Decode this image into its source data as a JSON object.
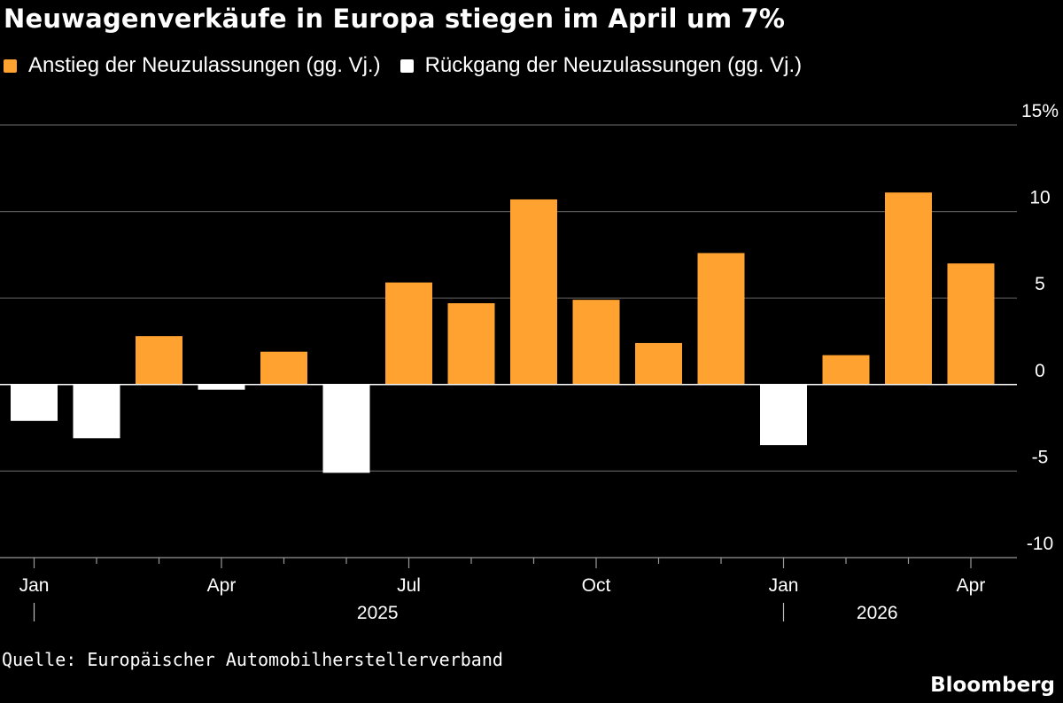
{
  "title": "Neuwagenverkäufe in Europa stiegen im April um 7%",
  "legend": {
    "positive": {
      "label": "Anstieg der Neuzulassungen (gg. Vj.)",
      "color": "#FFA22F"
    },
    "negative": {
      "label": "Rückgang der Neuzulassungen (gg. Vj.)",
      "color": "#FFFFFF"
    }
  },
  "chart_data": {
    "type": "bar",
    "categories": [
      "Jan 2025",
      "Feb 2025",
      "Mar 2025",
      "Apr 2025",
      "May 2025",
      "Jun 2025",
      "Jul 2025",
      "Aug 2025",
      "Sep 2025",
      "Oct 2025",
      "Nov 2025",
      "Dec 2025",
      "Jan 2026",
      "Feb 2026",
      "Mar 2026",
      "Apr 2026"
    ],
    "values": [
      -2.1,
      -3.1,
      2.8,
      -0.3,
      1.9,
      -5.1,
      5.9,
      4.7,
      10.7,
      4.9,
      2.4,
      7.6,
      -3.5,
      1.7,
      11.1,
      7.0
    ],
    "y_unit": "%",
    "ylim": [
      -10,
      15
    ],
    "yticks": [
      -10,
      -5,
      0,
      5,
      10,
      15
    ],
    "ytick_labels": [
      "-10",
      "-5",
      "0",
      "5",
      "10",
      "15%"
    ],
    "x_tick_labels": [
      {
        "index": 0,
        "label": "Jan"
      },
      {
        "index": 3,
        "label": "Apr"
      },
      {
        "index": 6,
        "label": "Jul"
      },
      {
        "index": 9,
        "label": "Oct"
      },
      {
        "index": 12,
        "label": "Jan"
      },
      {
        "index": 15,
        "label": "Apr"
      }
    ],
    "year_labels": [
      {
        "label": "2025",
        "start_index": 0
      },
      {
        "label": "2026",
        "start_index": 12
      }
    ],
    "grid": true,
    "legend_position": "top-left"
  },
  "source": "Quelle: Europäischer Automobilherstellerverband",
  "brand": "Bloomberg"
}
